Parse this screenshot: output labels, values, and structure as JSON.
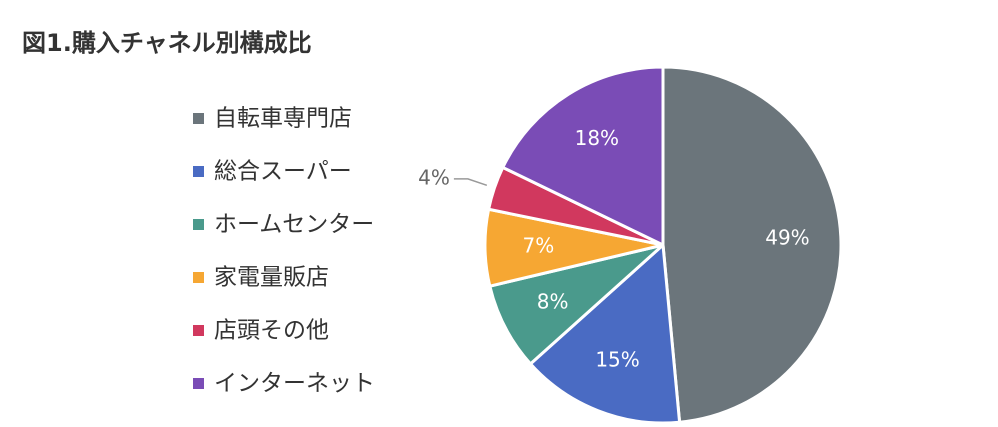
{
  "chart_data": {
    "type": "pie",
    "title": "図1.購入チャネル別構成比",
    "categories": [
      "自転車専門店",
      "総合スーパー",
      "ホームセンター",
      "家電量販店",
      "店頭その他",
      "インターネット"
    ],
    "values": [
      49,
      15,
      8,
      7,
      4,
      18
    ],
    "value_labels": [
      "49%",
      "15%",
      "8%",
      "7%",
      "4%",
      "18%"
    ],
    "colors": [
      "#6b757b",
      "#4a6bc3",
      "#4a9a8c",
      "#f6a733",
      "#d1385e",
      "#7a4cb6"
    ],
    "legend": "left"
  }
}
